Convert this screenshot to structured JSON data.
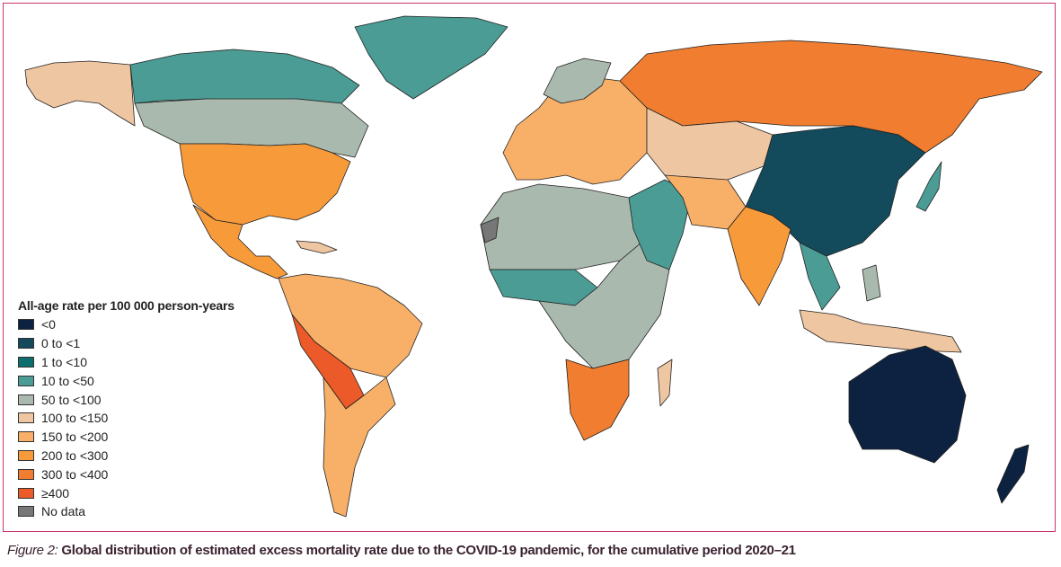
{
  "legend": {
    "title": "All-age rate per 100 000 person-years",
    "items": [
      {
        "label": "<0",
        "color": "#0d2240"
      },
      {
        "label": "0 to <1",
        "color": "#134a5c"
      },
      {
        "label": "1 to <10",
        "color": "#0e6d6d"
      },
      {
        "label": "10 to <50",
        "color": "#4a9c94"
      },
      {
        "label": "50 to <100",
        "color": "#aab9ae"
      },
      {
        "label": "100 to <150",
        "color": "#efc6a2"
      },
      {
        "label": "150 to <200",
        "color": "#f8b068"
      },
      {
        "label": "200 to <300",
        "color": "#f79a3a"
      },
      {
        "label": "300 to <400",
        "color": "#f07d30"
      },
      {
        "label": "≥400",
        "color": "#eb5a28"
      },
      {
        "label": "No data",
        "color": "#777777"
      }
    ]
  },
  "caption": {
    "figure_label": "Figure 2:",
    "text": " Global distribution of estimated excess mortality rate due to the COVID-19 pandemic, for the cumulative period 2020–21"
  },
  "frame_color": "#c9366f"
}
